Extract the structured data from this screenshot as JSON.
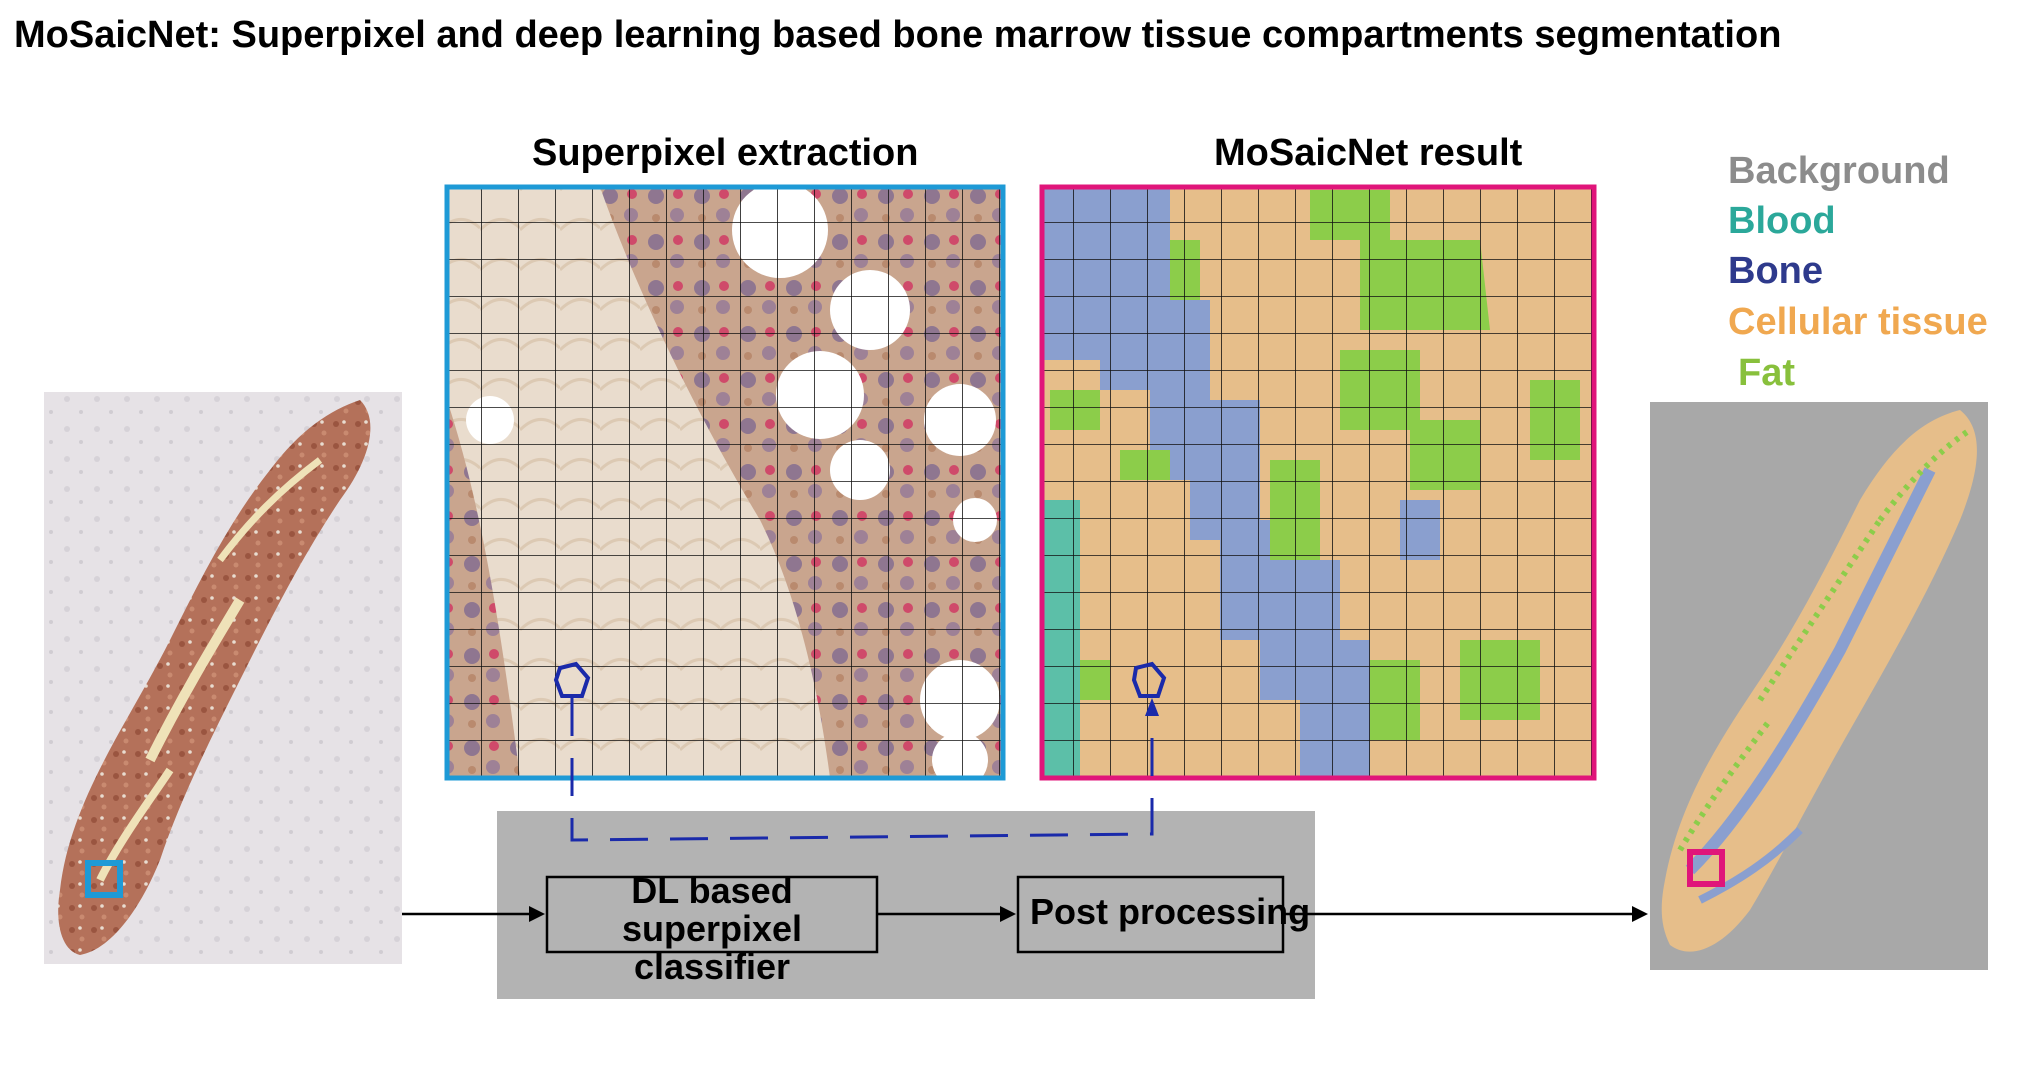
{
  "title": "MoSaicNet: Superpixel and deep learning based bone marrow tissue compartments segmentation",
  "panels": {
    "superpixel_title": "Superpixel extraction",
    "result_title": "MoSaicNet result"
  },
  "pipeline": {
    "classifier_label_line1": "DL based superpixel",
    "classifier_label_line2": "classifier",
    "post_label": "Post processing"
  },
  "legend": [
    {
      "label": "Background",
      "color": "#8c8c8c"
    },
    {
      "label": "Blood",
      "color": "#2ba89a"
    },
    {
      "label": "Bone",
      "color": "#2e3a8c"
    },
    {
      "label": "Cellular tissue",
      "color": "#f0a850"
    },
    {
      "label": "Fat",
      "color": "#88c03c"
    }
  ],
  "colors": {
    "superpixel_frame": "#1e9ad6",
    "result_frame": "#e0157a",
    "pipeline_bg": "#b3b3b3",
    "seg_background": "#a8a8a8",
    "seg_blood": "#5cbfa8",
    "seg_bone": "#8a9fcf",
    "seg_cellular": "#e6be8a",
    "seg_fat": "#8ccd4a",
    "highlight_poly": "#1a2aaa"
  }
}
